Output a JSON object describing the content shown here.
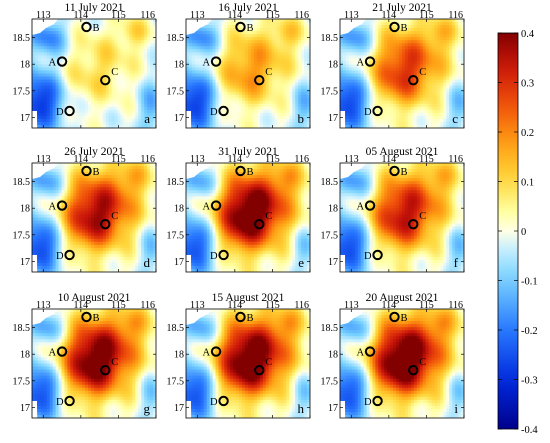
{
  "panels": [
    {
      "letter": "a",
      "date": "11 July 2021",
      "intensity": 0.22
    },
    {
      "letter": "b",
      "date": "16 July 2021",
      "intensity": 0.4
    },
    {
      "letter": "c",
      "date": "21 July 2021",
      "intensity": 0.62
    },
    {
      "letter": "d",
      "date": "26 July 2021",
      "intensity": 0.78
    },
    {
      "letter": "e",
      "date": "31 July 2021",
      "intensity": 0.95
    },
    {
      "letter": "f",
      "date": "05 August 2021",
      "intensity": 0.72
    },
    {
      "letter": "g",
      "date": "10 August 2021",
      "intensity": 0.92
    },
    {
      "letter": "h",
      "date": "15 August 2021",
      "intensity": 0.95
    },
    {
      "letter": "i",
      "date": "20 August 2021",
      "intensity": 0.98
    }
  ],
  "x_ticks": [
    "113",
    "114",
    "115",
    "116"
  ],
  "y_ticks": [
    "18.5",
    "18",
    "17.5",
    "17"
  ],
  "x_range": [
    112.7,
    116.0
  ],
  "y_range": [
    16.8,
    18.85
  ],
  "stations": [
    {
      "name": "A",
      "lon": 113.5,
      "lat": 18.05
    },
    {
      "name": "B",
      "lon": 114.15,
      "lat": 18.7
    },
    {
      "name": "C",
      "lon": 114.65,
      "lat": 17.7
    },
    {
      "name": "D",
      "lon": 113.7,
      "lat": 17.12
    }
  ],
  "colorbar": {
    "min": -0.4,
    "max": 0.4,
    "ticks": [
      "0.4",
      "0.3",
      "0.2",
      "0.1",
      "0",
      "-0.1",
      "-0.2",
      "-0.3",
      "-0.4"
    ]
  }
}
